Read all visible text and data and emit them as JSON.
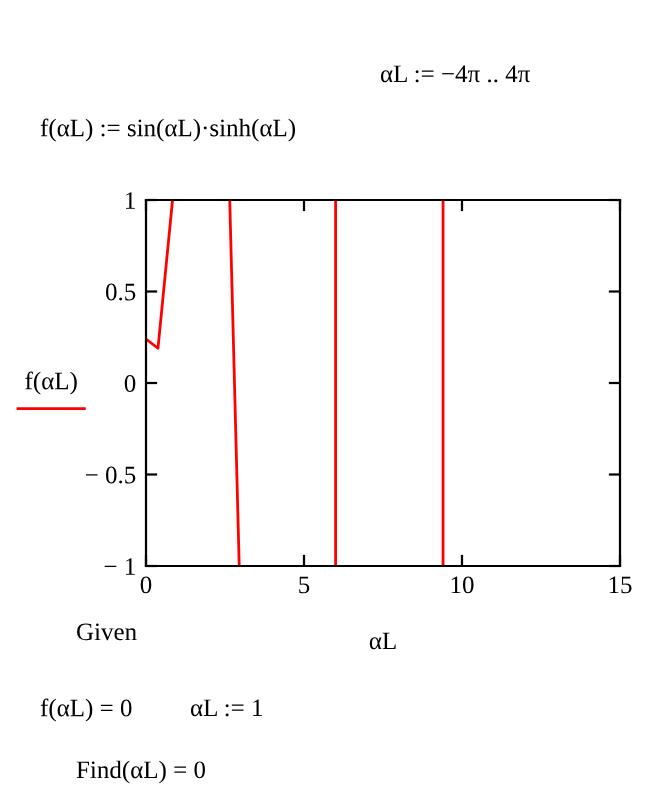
{
  "chart_data": {
    "type": "line",
    "x": [
      0,
      0.38,
      0.84,
      null,
      2.65,
      2.95,
      null,
      6.0,
      6.0,
      null,
      9.4,
      9.4
    ],
    "series": [
      {
        "color": "#ff0000",
        "values": [
          0.24,
          0.19,
          1,
          null,
          1,
          -1,
          null,
          -1,
          1,
          null,
          1,
          -1
        ]
      }
    ],
    "xlabel": "αL",
    "ylabel": "f(αL)",
    "xlim": [
      0,
      15
    ],
    "xticks": [
      0,
      5,
      10,
      15
    ],
    "ylim": [
      -1,
      1
    ],
    "yticks": [
      {
        "value": -1,
        "label": "− 1"
      },
      {
        "value": -0.5,
        "label": "− 0.5"
      },
      0,
      0.5,
      1
    ],
    "grid": false,
    "legend": false,
    "annotations": [
      "αL := −4π .. 4π",
      "f(αL) := sin(αL)·sinh(αL)",
      "Given",
      "f(αL) = 0",
      "αL := 1",
      "Find(αL) = 0"
    ]
  }
}
